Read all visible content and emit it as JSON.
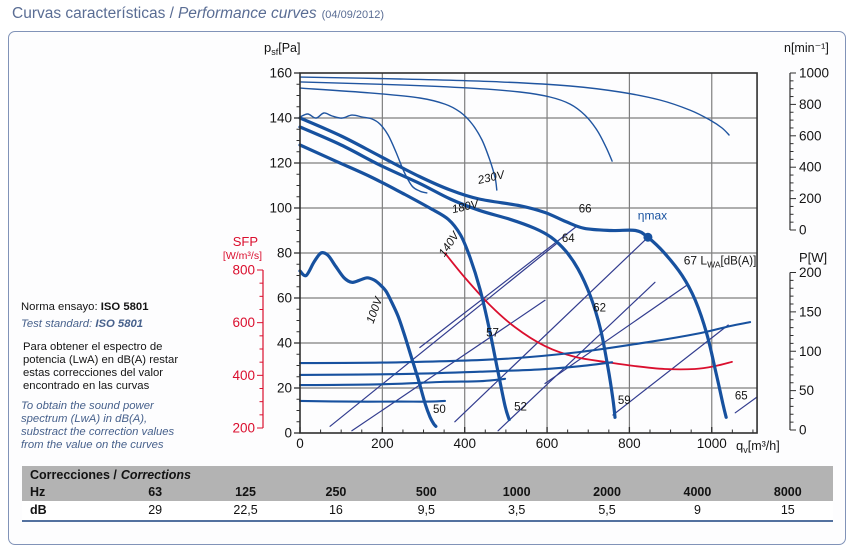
{
  "title": {
    "es": "Curvas características /",
    "en": "Performance curves",
    "date": "(04/09/2012)"
  },
  "notes": {
    "norma_label": "Norma ensayo:",
    "norma_value": "ISO 5801",
    "test_label": "Test standard:",
    "test_value": "ISO 5801",
    "es_lines": [
      "Para obtener el espectro de",
      "potencia (LwA) en dB(A) restar",
      "estas correcciones del valor",
      "encontrado en las curvas"
    ],
    "en_lines": [
      "To obtain the sound power",
      "spectrum (LwA) in dB(A),",
      "substract the correction values",
      "from the value on the curves"
    ]
  },
  "corrections_table": {
    "title_es": "Correcciones /",
    "title_en": "Corrections",
    "row_hz_label": "Hz",
    "row_db_label": "dB",
    "hz": [
      "63",
      "125",
      "250",
      "500",
      "1000",
      "2000",
      "4000",
      "8000"
    ],
    "db": [
      "29",
      "22,5",
      "16",
      "9,5",
      "3,5",
      "5,5",
      "9",
      "15"
    ]
  },
  "chart_data": {
    "type": "line",
    "title": "Performance curves",
    "x_axis": {
      "label_base": "q",
      "label_sub": "v",
      "label_rest": "[m³/h]",
      "ticks": [
        0,
        200,
        400,
        600,
        800,
        1000
      ],
      "minor_step": 50,
      "range": [
        0,
        1110
      ]
    },
    "pressure_axis": {
      "label_base": "p",
      "label_sub": "sf",
      "label_rest": "[Pa]",
      "ticks": [
        0,
        20,
        40,
        60,
        80,
        100,
        120,
        140,
        160
      ],
      "minor_step": 5,
      "range": [
        0,
        160
      ]
    },
    "speed_axis": {
      "label": "n[min⁻¹]",
      "ticks": [
        0,
        200,
        400,
        600,
        800,
        1000
      ],
      "minor_step": 50,
      "range": [
        0,
        1000
      ]
    },
    "power_axis": {
      "label": "P[W]",
      "ticks": [
        0,
        50,
        100,
        150,
        200
      ],
      "minor_step": 10,
      "range": [
        0,
        200
      ]
    },
    "sfp_axis": {
      "label": "SFP",
      "unit": "[W/m³/s]",
      "ticks": [
        200,
        400,
        600,
        800
      ],
      "minor_step": 50,
      "range": [
        200,
        800
      ]
    },
    "colors": {
      "curve_blue": "#17519f",
      "speed_blue": "#2055a0",
      "lwa_navy": "#333d8f",
      "sfp_red": "#da0f2e",
      "grid": "#7f7f7f",
      "frame": "#2f2f2f",
      "text": "#141414"
    },
    "pressure_curves": [
      {
        "name": "230V",
        "label_q": 466,
        "label_p": 112,
        "label_rot": -13,
        "points": [
          [
            0,
            140
          ],
          [
            100,
            132
          ],
          [
            195,
            123
          ],
          [
            290,
            114
          ],
          [
            365,
            108
          ],
          [
            435,
            104
          ],
          [
            535,
            101
          ],
          [
            595,
            98
          ],
          [
            645,
            94
          ],
          [
            690,
            91
          ],
          [
            755,
            90
          ],
          [
            815,
            90
          ],
          [
            845,
            87
          ],
          [
            885,
            80
          ],
          [
            928,
            70
          ],
          [
            960,
            59
          ],
          [
            988,
            44
          ],
          [
            1010,
            27
          ],
          [
            1027,
            13
          ],
          [
            1035,
            7
          ]
        ]
      },
      {
        "name": "180V",
        "label_q": 403,
        "label_p": 99,
        "label_rot": -13,
        "points": [
          [
            0,
            136
          ],
          [
            100,
            128
          ],
          [
            195,
            119
          ],
          [
            290,
            111
          ],
          [
            365,
            104
          ],
          [
            435,
            99
          ],
          [
            510,
            95
          ],
          [
            570,
            91
          ],
          [
            610,
            87
          ],
          [
            645,
            81
          ],
          [
            675,
            73
          ],
          [
            705,
            61
          ],
          [
            730,
            46
          ],
          [
            748,
            29
          ],
          [
            760,
            15
          ],
          [
            765,
            7
          ]
        ]
      },
      {
        "name": "140V",
        "label_q": 369,
        "label_p": 83,
        "label_rot": -56,
        "points": [
          [
            0,
            128
          ],
          [
            85,
            121
          ],
          [
            170,
            114
          ],
          [
            255,
            106
          ],
          [
            315,
            100
          ],
          [
            360,
            95
          ],
          [
            390,
            88
          ],
          [
            413,
            78
          ],
          [
            437,
            64
          ],
          [
            460,
            46
          ],
          [
            480,
            28
          ],
          [
            498,
            12
          ],
          [
            508,
            6
          ]
        ]
      },
      {
        "name": "100V",
        "label_q": 189,
        "label_p": 54,
        "label_rot": -70,
        "points": [
          [
            0,
            72
          ],
          [
            15,
            70
          ],
          [
            34,
            76
          ],
          [
            51,
            80
          ],
          [
            68,
            79
          ],
          [
            87,
            74
          ],
          [
            107,
            69
          ],
          [
            126,
            67
          ],
          [
            146,
            68
          ],
          [
            163,
            69
          ],
          [
            180,
            68
          ],
          [
            194,
            66
          ],
          [
            209,
            63
          ],
          [
            223,
            58
          ],
          [
            238,
            52
          ],
          [
            253,
            44
          ],
          [
            270,
            34
          ],
          [
            287,
            24
          ],
          [
            304,
            13
          ],
          [
            316,
            7
          ],
          [
            325,
            4
          ],
          [
            330,
            3
          ]
        ]
      }
    ],
    "speed_curves": [
      {
        "name": "n-230V",
        "points": [
          [
            0,
            974
          ],
          [
            243,
            962
          ],
          [
            486,
            943
          ],
          [
            656,
            917
          ],
          [
            777,
            879
          ],
          [
            874,
            828
          ],
          [
            947,
            764
          ],
          [
            996,
            700
          ],
          [
            1025,
            650
          ],
          [
            1042,
            605
          ]
        ]
      },
      {
        "name": "n-180V",
        "points": [
          [
            0,
            943
          ],
          [
            243,
            924
          ],
          [
            413,
            904
          ],
          [
            534,
            879
          ],
          [
            607,
            847
          ],
          [
            656,
            802
          ],
          [
            692,
            732
          ],
          [
            721,
            637
          ],
          [
            743,
            529
          ],
          [
            758,
            439
          ]
        ]
      },
      {
        "name": "n-140V",
        "points": [
          [
            0,
            904
          ],
          [
            170,
            873
          ],
          [
            291,
            841
          ],
          [
            352,
            802
          ],
          [
            389,
            751
          ],
          [
            418,
            675
          ],
          [
            442,
            573
          ],
          [
            461,
            446
          ],
          [
            474,
            331
          ],
          [
            478,
            255
          ]
        ]
      },
      {
        "name": "n-100V",
        "points": [
          [
            0,
            720
          ],
          [
            19,
            739
          ],
          [
            39,
            713
          ],
          [
            58,
            745
          ],
          [
            78,
            726
          ],
          [
            102,
            713
          ],
          [
            126,
            732
          ],
          [
            151,
            720
          ],
          [
            175,
            707
          ],
          [
            194,
            675
          ],
          [
            214,
            605
          ],
          [
            233,
            497
          ],
          [
            253,
            369
          ],
          [
            272,
            280
          ],
          [
            291,
            248
          ],
          [
            308,
            236
          ]
        ]
      }
    ],
    "power_curves": [
      {
        "name": "P-230V",
        "points": [
          [
            0,
            85
          ],
          [
            243,
            86
          ],
          [
            486,
            90
          ],
          [
            680,
            99
          ],
          [
            850,
            112
          ],
          [
            972,
            123
          ],
          [
            1044,
            132
          ],
          [
            1093,
            137
          ]
        ]
      },
      {
        "name": "P-180V",
        "points": [
          [
            0,
            70
          ],
          [
            243,
            71
          ],
          [
            437,
            74
          ],
          [
            583,
            77
          ],
          [
            680,
            81
          ],
          [
            758,
            86
          ]
        ]
      },
      {
        "name": "P-140V",
        "points": [
          [
            0,
            57
          ],
          [
            194,
            58
          ],
          [
            340,
            61
          ],
          [
            437,
            62
          ],
          [
            498,
            65
          ]
        ]
      },
      {
        "name": "P-100V",
        "points": [
          [
            0,
            37
          ],
          [
            121,
            36
          ],
          [
            243,
            36
          ],
          [
            316,
            36
          ],
          [
            352,
            37
          ]
        ]
      }
    ],
    "sfp_curve": {
      "points": [
        [
          352,
          864
        ],
        [
          401,
          770
        ],
        [
          461,
          667
        ],
        [
          522,
          583
        ],
        [
          595,
          511
        ],
        [
          668,
          470
        ],
        [
          741,
          451
        ],
        [
          814,
          435
        ],
        [
          886,
          424
        ],
        [
          959,
          424
        ],
        [
          1008,
          435
        ],
        [
          1049,
          451
        ]
      ]
    },
    "lwa_lines": [
      {
        "name": "lwa-57",
        "points": [
          [
            126,
            1
          ],
          [
            595,
            59
          ]
        ]
      },
      {
        "name": "lwa-62",
        "points": [
          [
            481,
            1
          ],
          [
            862,
            67
          ]
        ]
      },
      {
        "name": "lwa-64",
        "points": [
          [
            73,
            3
          ],
          [
            622,
            84
          ]
        ]
      },
      {
        "name": "lwa-66",
        "points": [
          [
            291,
            38
          ],
          [
            673,
            92
          ]
        ]
      },
      {
        "name": "lwa-67",
        "points": [
          [
            595,
            22
          ],
          [
            942,
            66
          ]
        ]
      },
      {
        "name": "lwa-59",
        "points": [
          [
            760,
            8
          ],
          [
            1040,
            48
          ]
        ]
      },
      {
        "name": "lwa-65",
        "points": [
          [
            1057,
            9
          ],
          [
            1110,
            16
          ]
        ]
      }
    ],
    "lwa_labels": [
      {
        "text": "50",
        "q": 323,
        "p": 9
      },
      {
        "text": "52",
        "q": 520,
        "p": 10
      },
      {
        "text": "59",
        "q": 772,
        "p": 13
      },
      {
        "text": "65",
        "q": 1056,
        "p": 15
      },
      {
        "text": "57",
        "q": 452,
        "p": 43
      },
      {
        "text": "62",
        "q": 712,
        "p": 54
      },
      {
        "text": "64",
        "q": 636,
        "p": 85
      },
      {
        "text": "66",
        "q": 677,
        "p": 98
      }
    ],
    "lwa_family_label": {
      "num": "67",
      "base": "L",
      "sub": "WA",
      "rest": "[dB(A)]",
      "q": 932,
      "p": 75
    },
    "efficiency": {
      "label": "ηmax",
      "label_q": 856,
      "label_p": 95,
      "dot_q": 845,
      "dot_p": 87,
      "line": [
        [
          376,
          5
        ],
        [
          845,
          87
        ]
      ]
    }
  }
}
